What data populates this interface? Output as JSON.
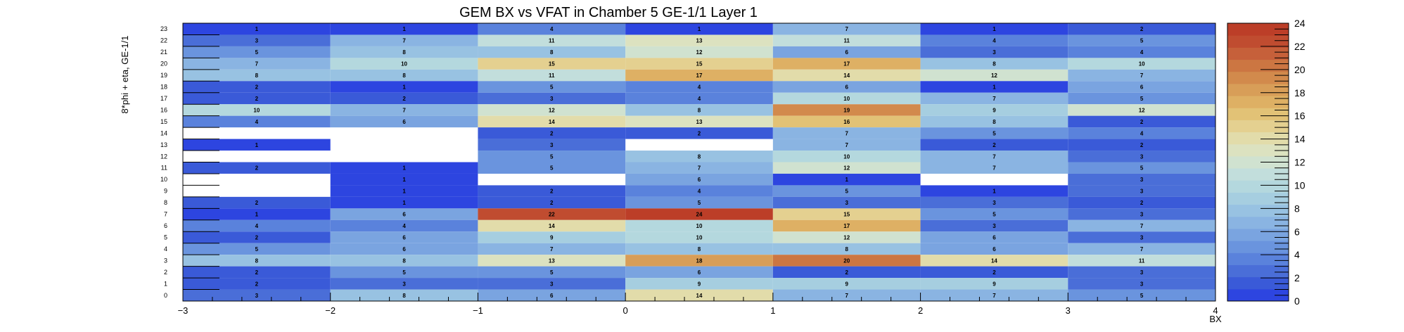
{
  "chart_data": {
    "type": "heatmap",
    "title": "GEM BX vs VFAT in Chamber 5 GE-1/1 Layer 1",
    "xlabel": "BX",
    "ylabel": "8*phi + eta, GE-1/1",
    "x_bins": [
      [
        -3,
        -2
      ],
      [
        -2,
        -1
      ],
      [
        -1,
        0
      ],
      [
        0,
        1
      ],
      [
        1,
        2
      ],
      [
        2,
        3
      ],
      [
        3,
        4
      ]
    ],
    "xlim": [
      -3,
      4
    ],
    "ylim": [
      0,
      24
    ],
    "x_ticks": [
      "−3",
      "−2",
      "−1",
      "0",
      "1",
      "2",
      "3",
      "4"
    ],
    "y_ticks": [
      "0",
      "1",
      "2",
      "3",
      "4",
      "5",
      "6",
      "7",
      "8",
      "9",
      "10",
      "11",
      "12",
      "13",
      "14",
      "15",
      "16",
      "17",
      "18",
      "19",
      "20",
      "21",
      "22",
      "23"
    ],
    "colorbar": {
      "min": 0,
      "max": 24,
      "ticks": [
        "0",
        "2",
        "4",
        "6",
        "8",
        "10",
        "12",
        "14",
        "16",
        "18",
        "20",
        "22",
        "24"
      ]
    },
    "rows": [
      {
        "y": 23,
        "values": [
          1,
          1,
          4,
          1,
          7,
          1,
          2
        ]
      },
      {
        "y": 22,
        "values": [
          3,
          7,
          11,
          13,
          11,
          4,
          5
        ]
      },
      {
        "y": 21,
        "values": [
          5,
          8,
          8,
          12,
          6,
          3,
          4
        ]
      },
      {
        "y": 20,
        "values": [
          7,
          10,
          15,
          15,
          17,
          8,
          10
        ]
      },
      {
        "y": 19,
        "values": [
          8,
          8,
          11,
          17,
          14,
          12,
          7
        ]
      },
      {
        "y": 18,
        "values": [
          2,
          1,
          5,
          4,
          6,
          1,
          6
        ]
      },
      {
        "y": 17,
        "values": [
          2,
          2,
          3,
          4,
          10,
          7,
          5
        ]
      },
      {
        "y": 16,
        "values": [
          10,
          7,
          12,
          8,
          19,
          9,
          12
        ]
      },
      {
        "y": 15,
        "values": [
          4,
          6,
          14,
          13,
          16,
          8,
          2
        ]
      },
      {
        "y": 14,
        "values": [
          null,
          null,
          2,
          2,
          7,
          5,
          4
        ]
      },
      {
        "y": 13,
        "values": [
          1,
          null,
          3,
          null,
          7,
          2,
          2
        ]
      },
      {
        "y": 12,
        "values": [
          null,
          null,
          5,
          8,
          10,
          7,
          3
        ]
      },
      {
        "y": 11,
        "values": [
          2,
          1,
          5,
          7,
          12,
          7,
          5
        ]
      },
      {
        "y": 10,
        "values": [
          null,
          1,
          null,
          6,
          1,
          null,
          3
        ]
      },
      {
        "y": 9,
        "values": [
          null,
          1,
          2,
          4,
          5,
          1,
          3
        ]
      },
      {
        "y": 8,
        "values": [
          2,
          1,
          2,
          5,
          3,
          3,
          2
        ]
      },
      {
        "y": 7,
        "values": [
          1,
          6,
          22,
          24,
          15,
          5,
          3
        ]
      },
      {
        "y": 6,
        "values": [
          4,
          4,
          14,
          10,
          17,
          3,
          7
        ]
      },
      {
        "y": 5,
        "values": [
          2,
          6,
          9,
          10,
          12,
          6,
          3
        ]
      },
      {
        "y": 4,
        "values": [
          5,
          6,
          7,
          8,
          8,
          6,
          7
        ]
      },
      {
        "y": 3,
        "values": [
          8,
          8,
          13,
          18,
          20,
          14,
          11
        ]
      },
      {
        "y": 2,
        "values": [
          2,
          5,
          5,
          6,
          2,
          2,
          3
        ]
      },
      {
        "y": 1,
        "values": [
          2,
          3,
          3,
          9,
          9,
          9,
          3
        ]
      },
      {
        "y": 0,
        "values": [
          3,
          8,
          6,
          14,
          7,
          7,
          5
        ]
      }
    ],
    "palette": [
      "#2d45e0",
      "#3a5ad8",
      "#4a6ed8",
      "#5a82dc",
      "#6a94de",
      "#7aa4e0",
      "#8ab4e2",
      "#98c2e2",
      "#a6cee0",
      "#b4d8de",
      "#c2dedc",
      "#d0e2d0",
      "#dce2c0",
      "#e2dcaa",
      "#e4d090",
      "#e2c276",
      "#deb064",
      "#d89e58",
      "#d28a4c",
      "#cc7642",
      "#c6603a",
      "#c04c30",
      "#bc3e28"
    ],
    "legend": "colorbar right",
    "grid": false
  }
}
